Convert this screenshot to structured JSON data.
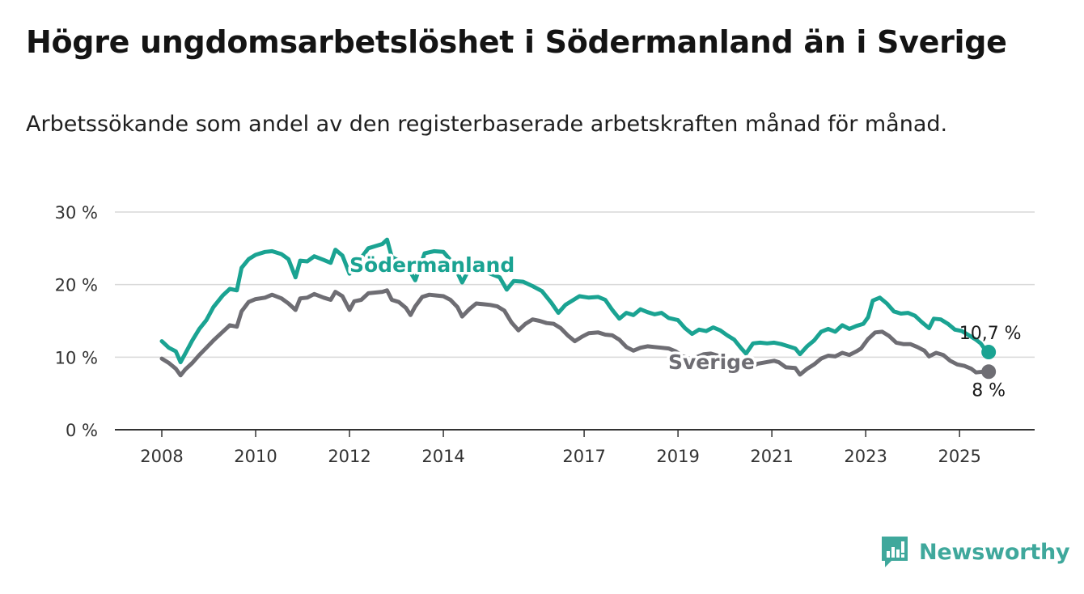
{
  "title": "Högre ungdomsarbetslöshet i Södermanland än i Sverige",
  "subtitle": "Arbetssökande som andel av den registerbaserade arbetskraften månad för månad.",
  "brand": {
    "name": "Newsworthy",
    "icon": "newsworthy-logo-icon"
  },
  "colors": {
    "sodermanland": "#1aa392",
    "sverige": "#6e6d73",
    "grid": "#d9d9d9",
    "axis": "#333333"
  },
  "chart_data": {
    "type": "line",
    "title": "Högre ungdomsarbetslöshet i Södermanland än i Sverige",
    "ylim": [
      0,
      30
    ],
    "xlim": [
      2007.0,
      2026.6
    ],
    "y_ticks": [
      0,
      10,
      20,
      30
    ],
    "y_tick_labels": [
      "0 %",
      "10 %",
      "20 %",
      "30 %"
    ],
    "x_ticks": [
      2008,
      2010,
      2012,
      2014,
      2017,
      2019,
      2021,
      2023,
      2025
    ],
    "x_tick_labels": [
      "2008",
      "2010",
      "2012",
      "2014",
      "2017",
      "2019",
      "2021",
      "2023",
      "2025"
    ],
    "grid": true,
    "legend": "inline labels",
    "series": [
      {
        "name": "Södermanland",
        "end_label": "10,7 %",
        "points": [
          [
            2008.0,
            12.2
          ],
          [
            2008.15,
            11.3
          ],
          [
            2008.3,
            10.8
          ],
          [
            2008.4,
            9.3
          ],
          [
            2008.5,
            10.5
          ],
          [
            2008.65,
            12.3
          ],
          [
            2008.8,
            13.9
          ],
          [
            2008.95,
            15.1
          ],
          [
            2009.1,
            16.9
          ],
          [
            2009.3,
            18.5
          ],
          [
            2009.45,
            19.4
          ],
          [
            2009.6,
            19.2
          ],
          [
            2009.7,
            22.3
          ],
          [
            2009.85,
            23.5
          ],
          [
            2010.0,
            24.1
          ],
          [
            2010.2,
            24.5
          ],
          [
            2010.35,
            24.6
          ],
          [
            2010.55,
            24.2
          ],
          [
            2010.7,
            23.5
          ],
          [
            2010.85,
            21.0
          ],
          [
            2010.95,
            23.3
          ],
          [
            2011.1,
            23.2
          ],
          [
            2011.25,
            23.9
          ],
          [
            2011.45,
            23.4
          ],
          [
            2011.6,
            23.0
          ],
          [
            2011.7,
            24.8
          ],
          [
            2011.85,
            24.0
          ],
          [
            2012.0,
            21.5
          ],
          [
            2012.1,
            23.5
          ],
          [
            2012.25,
            23.7
          ],
          [
            2012.4,
            25.0
          ],
          [
            2012.55,
            25.3
          ],
          [
            2012.7,
            25.6
          ],
          [
            2012.8,
            26.2
          ],
          [
            2012.9,
            23.8
          ],
          [
            2013.2,
            22.8
          ],
          [
            2013.4,
            20.6
          ],
          [
            2013.6,
            24.3
          ],
          [
            2013.8,
            24.6
          ],
          [
            2014.0,
            24.5
          ],
          [
            2014.2,
            23.0
          ],
          [
            2014.4,
            20.3
          ],
          [
            2014.6,
            22.8
          ],
          [
            2014.8,
            22.2
          ],
          [
            2015.0,
            21.5
          ],
          [
            2015.2,
            21.0
          ],
          [
            2015.35,
            19.3
          ],
          [
            2015.5,
            20.5
          ],
          [
            2015.7,
            20.4
          ],
          [
            2015.9,
            19.8
          ],
          [
            2016.1,
            19.1
          ],
          [
            2016.3,
            17.5
          ],
          [
            2016.45,
            16.1
          ],
          [
            2016.6,
            17.2
          ],
          [
            2016.75,
            17.8
          ],
          [
            2016.9,
            18.4
          ],
          [
            2017.1,
            18.2
          ],
          [
            2017.3,
            18.3
          ],
          [
            2017.45,
            17.9
          ],
          [
            2017.6,
            16.5
          ],
          [
            2017.75,
            15.3
          ],
          [
            2017.9,
            16.1
          ],
          [
            2018.05,
            15.8
          ],
          [
            2018.2,
            16.6
          ],
          [
            2018.35,
            16.2
          ],
          [
            2018.5,
            15.9
          ],
          [
            2018.65,
            16.1
          ],
          [
            2018.8,
            15.4
          ],
          [
            2019.0,
            15.1
          ],
          [
            2019.15,
            14.0
          ],
          [
            2019.3,
            13.2
          ],
          [
            2019.45,
            13.8
          ],
          [
            2019.6,
            13.6
          ],
          [
            2019.75,
            14.1
          ],
          [
            2019.9,
            13.7
          ],
          [
            2020.05,
            13.0
          ],
          [
            2020.2,
            12.4
          ],
          [
            2020.35,
            11.2
          ],
          [
            2020.45,
            10.5
          ],
          [
            2020.6,
            11.9
          ],
          [
            2020.75,
            12.0
          ],
          [
            2020.9,
            11.9
          ],
          [
            2021.05,
            12.0
          ],
          [
            2021.2,
            11.8
          ],
          [
            2021.35,
            11.5
          ],
          [
            2021.5,
            11.2
          ],
          [
            2021.6,
            10.4
          ],
          [
            2021.75,
            11.5
          ],
          [
            2021.9,
            12.3
          ],
          [
            2022.05,
            13.5
          ],
          [
            2022.2,
            13.9
          ],
          [
            2022.35,
            13.5
          ],
          [
            2022.5,
            14.4
          ],
          [
            2022.65,
            13.9
          ],
          [
            2022.8,
            14.3
          ],
          [
            2022.95,
            14.6
          ],
          [
            2023.05,
            15.5
          ],
          [
            2023.15,
            17.8
          ],
          [
            2023.3,
            18.2
          ],
          [
            2023.45,
            17.4
          ],
          [
            2023.6,
            16.3
          ],
          [
            2023.75,
            16.0
          ],
          [
            2023.9,
            16.1
          ],
          [
            2024.05,
            15.7
          ],
          [
            2024.2,
            14.8
          ],
          [
            2024.35,
            14.0
          ],
          [
            2024.45,
            15.3
          ],
          [
            2024.6,
            15.2
          ],
          [
            2024.75,
            14.6
          ],
          [
            2024.9,
            13.8
          ],
          [
            2025.05,
            13.6
          ],
          [
            2025.2,
            13.0
          ],
          [
            2025.35,
            12.4
          ],
          [
            2025.45,
            11.9
          ],
          [
            2025.55,
            11.0
          ],
          [
            2025.62,
            10.7
          ]
        ]
      },
      {
        "name": "Sverige",
        "end_label": "8 %",
        "points": [
          [
            2008.0,
            9.8
          ],
          [
            2008.15,
            9.2
          ],
          [
            2008.3,
            8.4
          ],
          [
            2008.4,
            7.5
          ],
          [
            2008.5,
            8.3
          ],
          [
            2008.65,
            9.2
          ],
          [
            2008.8,
            10.3
          ],
          [
            2008.95,
            11.3
          ],
          [
            2009.1,
            12.3
          ],
          [
            2009.3,
            13.5
          ],
          [
            2009.45,
            14.4
          ],
          [
            2009.6,
            14.2
          ],
          [
            2009.7,
            16.3
          ],
          [
            2009.85,
            17.6
          ],
          [
            2010.0,
            18.0
          ],
          [
            2010.2,
            18.2
          ],
          [
            2010.35,
            18.6
          ],
          [
            2010.55,
            18.1
          ],
          [
            2010.7,
            17.4
          ],
          [
            2010.85,
            16.5
          ],
          [
            2010.95,
            18.1
          ],
          [
            2011.1,
            18.2
          ],
          [
            2011.25,
            18.7
          ],
          [
            2011.45,
            18.2
          ],
          [
            2011.6,
            17.9
          ],
          [
            2011.7,
            19.0
          ],
          [
            2011.85,
            18.4
          ],
          [
            2012.0,
            16.5
          ],
          [
            2012.1,
            17.7
          ],
          [
            2012.25,
            17.9
          ],
          [
            2012.4,
            18.8
          ],
          [
            2012.55,
            18.9
          ],
          [
            2012.7,
            19.0
          ],
          [
            2012.8,
            19.2
          ],
          [
            2012.9,
            17.9
          ],
          [
            2013.05,
            17.6
          ],
          [
            2013.2,
            16.8
          ],
          [
            2013.3,
            15.8
          ],
          [
            2013.4,
            17.0
          ],
          [
            2013.55,
            18.3
          ],
          [
            2013.7,
            18.6
          ],
          [
            2013.85,
            18.5
          ],
          [
            2014.0,
            18.4
          ],
          [
            2014.15,
            17.9
          ],
          [
            2014.3,
            16.9
          ],
          [
            2014.4,
            15.6
          ],
          [
            2014.55,
            16.6
          ],
          [
            2014.7,
            17.4
          ],
          [
            2014.85,
            17.3
          ],
          [
            2015.0,
            17.2
          ],
          [
            2015.15,
            17.0
          ],
          [
            2015.3,
            16.4
          ],
          [
            2015.45,
            14.8
          ],
          [
            2015.6,
            13.7
          ],
          [
            2015.75,
            14.6
          ],
          [
            2015.9,
            15.2
          ],
          [
            2016.05,
            15.0
          ],
          [
            2016.2,
            14.7
          ],
          [
            2016.35,
            14.6
          ],
          [
            2016.5,
            14.0
          ],
          [
            2016.65,
            13.0
          ],
          [
            2016.8,
            12.2
          ],
          [
            2016.95,
            12.8
          ],
          [
            2017.1,
            13.3
          ],
          [
            2017.3,
            13.4
          ],
          [
            2017.45,
            13.1
          ],
          [
            2017.6,
            13.0
          ],
          [
            2017.75,
            12.4
          ],
          [
            2017.9,
            11.4
          ],
          [
            2018.05,
            10.9
          ],
          [
            2018.2,
            11.3
          ],
          [
            2018.35,
            11.5
          ],
          [
            2018.5,
            11.4
          ],
          [
            2018.65,
            11.3
          ],
          [
            2018.8,
            11.2
          ],
          [
            2018.95,
            10.8
          ],
          [
            2019.1,
            10.1
          ],
          [
            2019.25,
            9.8
          ],
          [
            2019.4,
            10.0
          ],
          [
            2019.55,
            10.4
          ],
          [
            2019.7,
            10.5
          ],
          [
            2019.85,
            10.2
          ],
          [
            2020.0,
            9.9
          ],
          [
            2020.15,
            9.3
          ],
          [
            2020.3,
            8.5
          ],
          [
            2020.45,
            8.9
          ],
          [
            2020.6,
            8.8
          ],
          [
            2020.7,
            9.1
          ],
          [
            2021.05,
            9.5
          ],
          [
            2021.15,
            9.3
          ],
          [
            2021.3,
            8.6
          ],
          [
            2021.5,
            8.5
          ],
          [
            2021.6,
            7.6
          ],
          [
            2021.75,
            8.4
          ],
          [
            2021.9,
            9.0
          ],
          [
            2022.05,
            9.8
          ],
          [
            2022.2,
            10.2
          ],
          [
            2022.35,
            10.1
          ],
          [
            2022.5,
            10.6
          ],
          [
            2022.65,
            10.3
          ],
          [
            2022.8,
            10.8
          ],
          [
            2022.9,
            11.2
          ],
          [
            2023.05,
            12.5
          ],
          [
            2023.2,
            13.4
          ],
          [
            2023.35,
            13.5
          ],
          [
            2023.5,
            12.9
          ],
          [
            2023.65,
            12.0
          ],
          [
            2023.8,
            11.8
          ],
          [
            2023.95,
            11.8
          ],
          [
            2024.1,
            11.4
          ],
          [
            2024.25,
            10.9
          ],
          [
            2024.35,
            10.1
          ],
          [
            2024.5,
            10.6
          ],
          [
            2024.65,
            10.3
          ],
          [
            2024.8,
            9.5
          ],
          [
            2024.95,
            9.0
          ],
          [
            2025.1,
            8.8
          ],
          [
            2025.25,
            8.4
          ],
          [
            2025.35,
            7.9
          ],
          [
            2025.5,
            8.0
          ],
          [
            2025.62,
            8.0
          ]
        ]
      }
    ],
    "annotations": [
      {
        "text": "Södermanland",
        "series": "Södermanland"
      },
      {
        "text": "Sverige",
        "series": "Sverige"
      }
    ]
  }
}
